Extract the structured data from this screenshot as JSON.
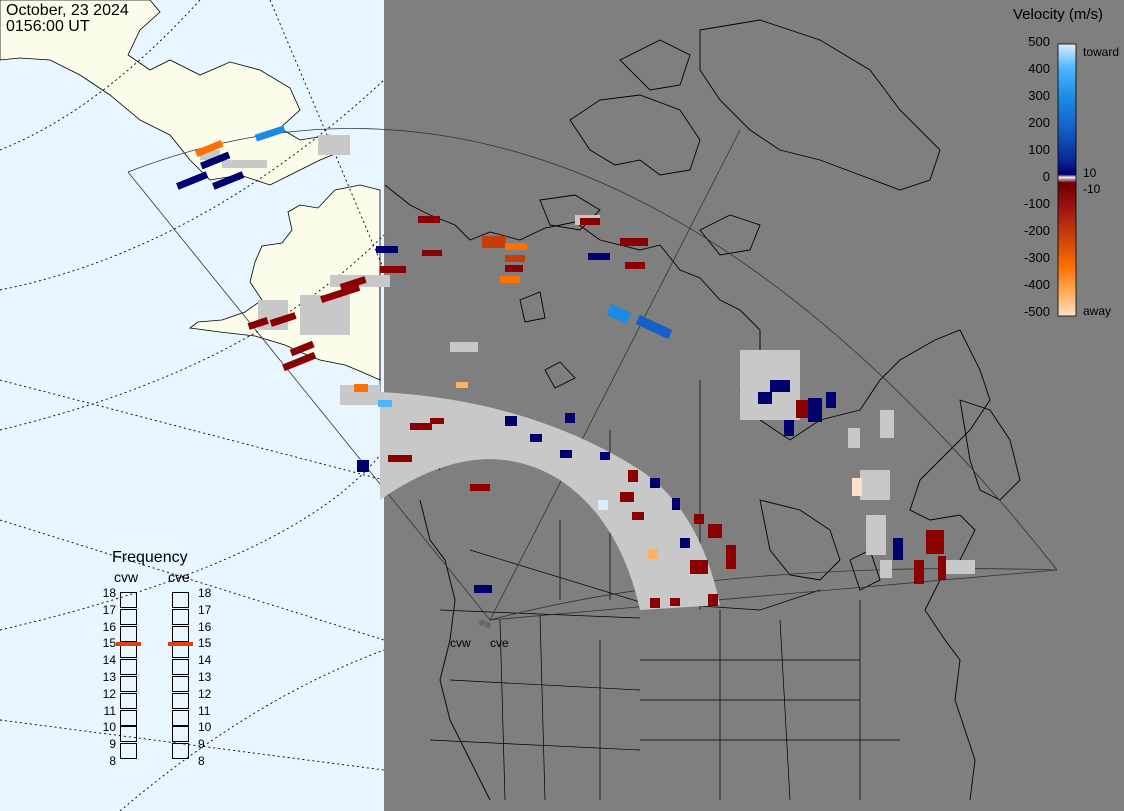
{
  "header": {
    "date": "October, 23 2024",
    "time": "0156:00 UT"
  },
  "colorbar": {
    "title": "Velocity (m/s)",
    "ticks": [
      "500",
      "400",
      "300",
      "200",
      "100",
      "10",
      "0",
      "-10",
      "-100",
      "-200",
      "-300",
      "-400",
      "-500"
    ],
    "toward_label": "toward",
    "away_label": "away",
    "gradient_colors": [
      "#d7eeff",
      "#4cb6ff",
      "#1a8ae6",
      "#1560c8",
      "#0a2c9a",
      "#00006e",
      "#eeeeee",
      "#6e0000",
      "#9a1414",
      "#c83c0a",
      "#ff7000",
      "#ffb060",
      "#ffe0c8"
    ]
  },
  "frequency": {
    "title": "Frequency",
    "radars": [
      {
        "name": "cvw",
        "current_mhz": 15
      },
      {
        "name": "cve",
        "current_mhz": 15
      }
    ],
    "scale": [
      "18",
      "17",
      "16",
      "15",
      "14",
      "13",
      "12",
      "11",
      "10",
      "9",
      "8"
    ],
    "marker_color": "#e04010"
  },
  "sites": {
    "west_label": "cvw",
    "east_label": "cve"
  },
  "palette": {
    "ocean": "#e8f6ff",
    "night_land": "#7f7f7f",
    "day_land": "#fcfcea",
    "ground_scatter": "#c8c8c8"
  }
}
